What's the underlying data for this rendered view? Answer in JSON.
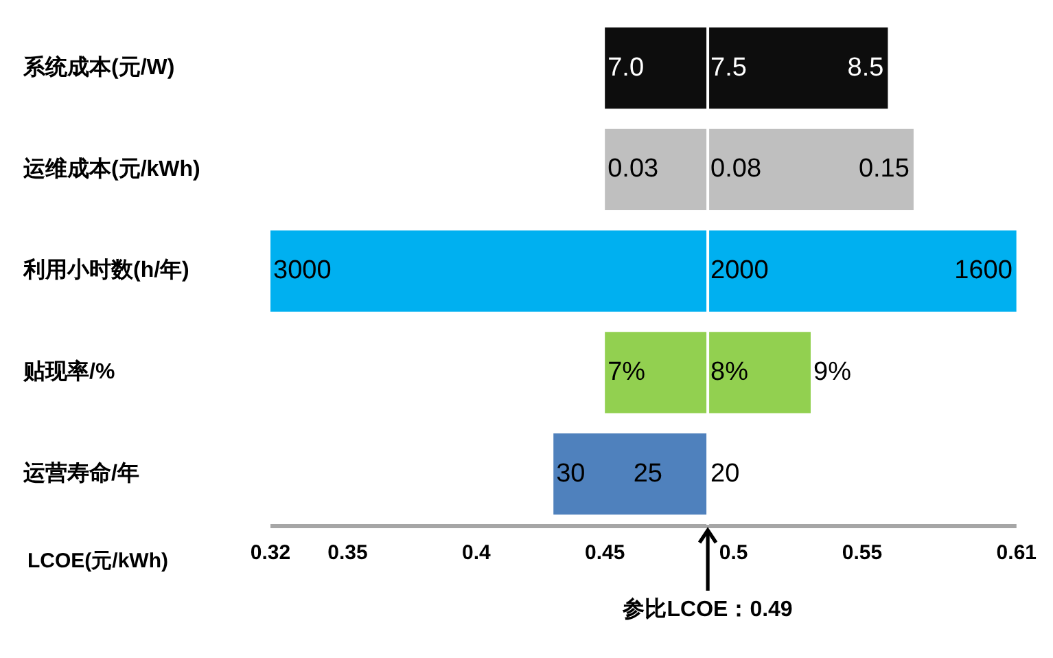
{
  "chart_data": {
    "type": "bar",
    "orientation": "horizontal",
    "xlabel": "LCOE(元/kWh)",
    "categories": [
      "系统成本(元/W)",
      "运维成本(元/kWh)",
      "利用小时数(h/年)",
      "贴现率/%",
      "运营寿命/年"
    ],
    "base": [
      0.45,
      0.45,
      0.32,
      0.45,
      0.43
    ],
    "values": [
      0.11,
      0.12,
      0.29,
      0.08,
      0.06
    ],
    "colors": [
      "#0d0d0d",
      "#bfbfbf",
      "#00b0f0",
      "#92d050",
      "#4f81bd"
    ],
    "xlim": [
      0.32,
      0.61
    ],
    "xticks": [
      0.32,
      0.35,
      0.4,
      0.45,
      0.5,
      0.55,
      0.61
    ],
    "ref_lines": [
      {
        "axis": "x",
        "value": 0.49,
        "label": "参比LCOE：0.49",
        "color": "#ffffff"
      }
    ],
    "annotations": [
      {
        "text": "7.0",
        "x": 0.45,
        "y": "系统成本(元/W)"
      },
      {
        "text": "7.5",
        "x": 0.49,
        "y": "系统成本(元/W)"
      },
      {
        "text": "8.5",
        "x": 0.56,
        "y": "系统成本(元/W)"
      },
      {
        "text": "0.03",
        "x": 0.45,
        "y": "运维成本(元/kWh)"
      },
      {
        "text": "0.08",
        "x": 0.49,
        "y": "运维成本(元/kWh)"
      },
      {
        "text": "0.15",
        "x": 0.57,
        "y": "运维成本(元/kWh)"
      },
      {
        "text": "3000",
        "x": 0.32,
        "y": "利用小时数(h/年)"
      },
      {
        "text": "2000",
        "x": 0.49,
        "y": "利用小时数(h/年)"
      },
      {
        "text": "1600",
        "x": 0.61,
        "y": "利用小时数(h/年)"
      },
      {
        "text": "7%",
        "x": 0.45,
        "y": "贴现率/%"
      },
      {
        "text": "8%",
        "x": 0.49,
        "y": "贴现率/%"
      },
      {
        "text": "9%",
        "x": 0.53,
        "y": "贴现率/%"
      },
      {
        "text": "30",
        "x": 0.43,
        "y": "运营寿命/年"
      },
      {
        "text": "25",
        "x": 0.46,
        "y": "运营寿命/年"
      },
      {
        "text": "20",
        "x": 0.49,
        "y": "运营寿命/年"
      }
    ],
    "grid": false,
    "legend": false
  }
}
